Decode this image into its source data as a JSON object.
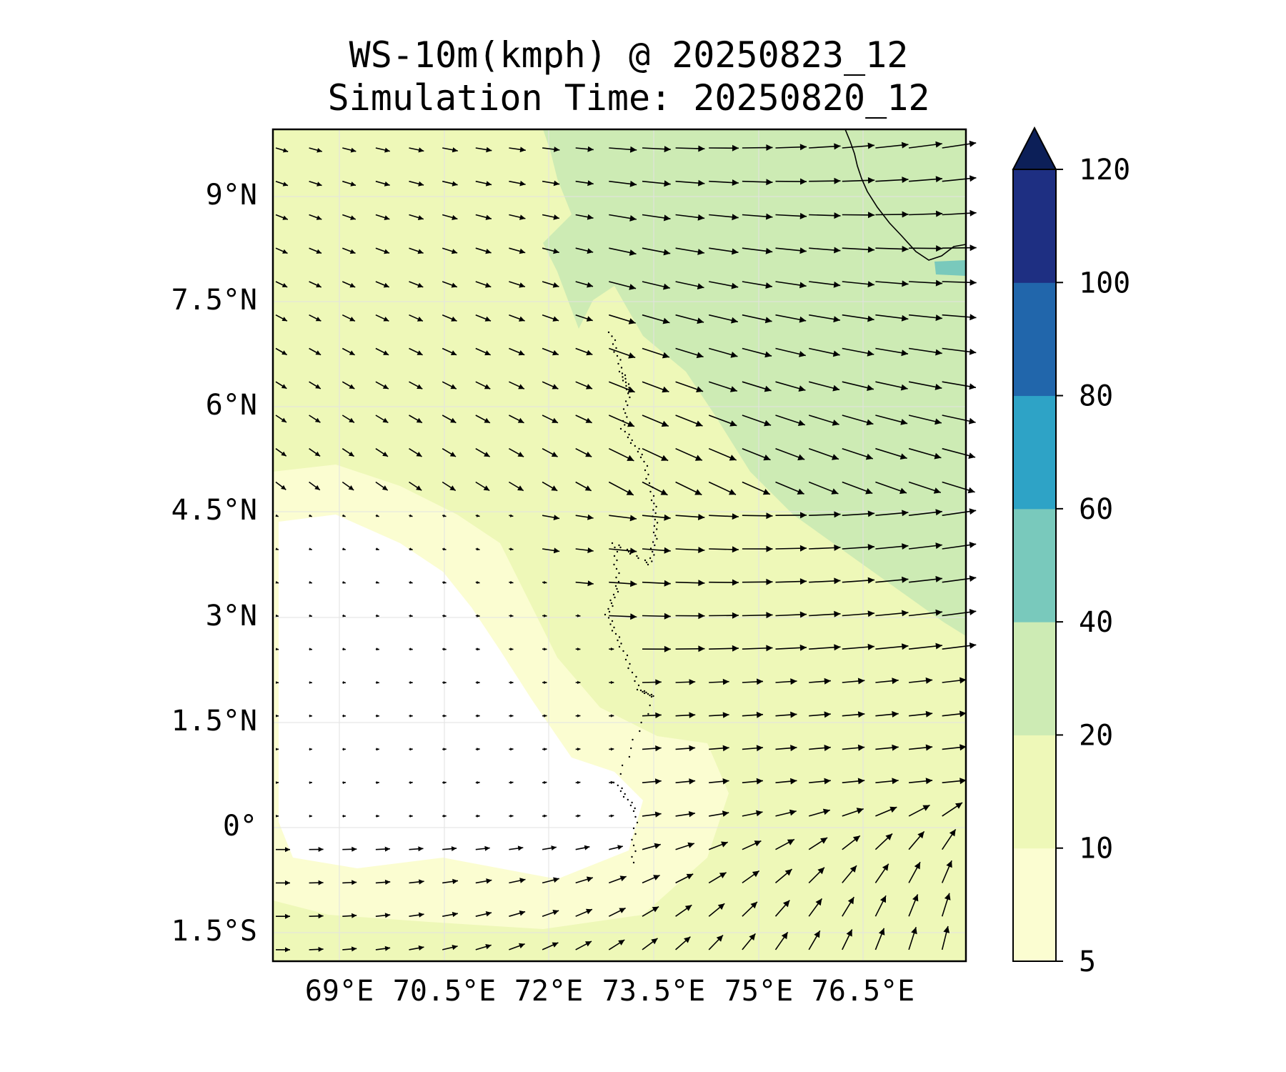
{
  "title": {
    "line1": "WS-10m(kmph) @ 20250823_12",
    "line2": "Simulation Time: 20250820_12"
  },
  "map": {
    "lat_ticks": [
      "9°N",
      "7.5°N",
      "6°N",
      "4.5°N",
      "3°N",
      "1.5°N",
      "0°",
      "1.5°S"
    ],
    "lon_ticks": [
      "69°E",
      "70.5°E",
      "72°E",
      "73.5°E",
      "75°E",
      "76.5°E"
    ]
  },
  "colorbar": {
    "levels": [
      "5",
      "10",
      "20",
      "40",
      "60",
      "80",
      "100",
      "120"
    ],
    "colors": [
      "#fbfdd1",
      "#eef8b8",
      "#cdebb4",
      "#79c9bc",
      "#2ea3c6",
      "#2166ab",
      "#1e2f82"
    ],
    "extend_color": "#0c1f58",
    "extend": "max"
  },
  "colors": {
    "calm": "#ffffff",
    "light": "#fbfdd1",
    "moderate": "#eef8b8",
    "fresh": "#cdebb4",
    "strong": "#79c9bc"
  }
}
